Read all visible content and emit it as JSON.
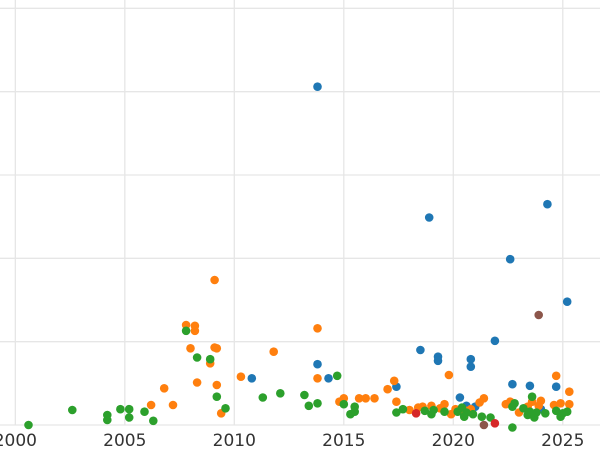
{
  "chart_data": {
    "type": "scatter",
    "title": "",
    "xlabel": "",
    "ylabel": "",
    "xlim": [
      1999.3,
      2026.7
    ],
    "ylim": [
      0,
      51
    ],
    "x_ticks": [
      2000,
      2005,
      2010,
      2015,
      2020,
      2025
    ],
    "x_tick_labels": [
      "2000",
      "2005",
      "2010",
      "2015",
      "2020",
      "2025"
    ],
    "y_gridlines": [
      0,
      10,
      20,
      30,
      40,
      50
    ],
    "grid": true,
    "legend": "none",
    "colors": {
      "blue": "#1f77b4",
      "orange": "#ff7f0e",
      "green": "#2ca02c",
      "red": "#d62728",
      "brown": "#8c564b"
    },
    "series": [
      {
        "color": "#1f77b4",
        "points": [
          [
            2010.8,
            5.6
          ],
          [
            2013.8,
            40.6
          ],
          [
            2013.8,
            7.3
          ],
          [
            2014.3,
            5.6
          ],
          [
            2017.4,
            4.6
          ],
          [
            2018.5,
            9.0
          ],
          [
            2018.9,
            24.9
          ],
          [
            2019.3,
            8.2
          ],
          [
            2019.3,
            7.7
          ],
          [
            2020.3,
            3.3
          ],
          [
            2020.6,
            2.3
          ],
          [
            2020.7,
            1.8
          ],
          [
            2020.8,
            7.9
          ],
          [
            2020.8,
            7.0
          ],
          [
            2021.0,
            2.2
          ],
          [
            2021.9,
            10.1
          ],
          [
            2022.6,
            19.9
          ],
          [
            2022.7,
            4.9
          ],
          [
            2024.0,
            1.9
          ],
          [
            2023.5,
            4.7
          ],
          [
            2024.3,
            26.5
          ],
          [
            2024.7,
            4.6
          ],
          [
            2025.2,
            14.8
          ],
          [
            2020.5,
            1.2
          ]
        ]
      },
      {
        "color": "#ff7f0e",
        "points": [
          [
            2006.2,
            2.4
          ],
          [
            2006.8,
            4.4
          ],
          [
            2007.2,
            2.4
          ],
          [
            2007.8,
            12.0
          ],
          [
            2008.0,
            9.2
          ],
          [
            2008.2,
            11.9
          ],
          [
            2008.2,
            11.3
          ],
          [
            2008.3,
            5.1
          ],
          [
            2008.9,
            7.4
          ],
          [
            2009.1,
            17.4
          ],
          [
            2009.1,
            9.3
          ],
          [
            2009.2,
            9.2
          ],
          [
            2009.2,
            4.8
          ],
          [
            2009.4,
            1.4
          ],
          [
            2010.3,
            5.8
          ],
          [
            2011.8,
            8.8
          ],
          [
            2013.8,
            5.6
          ],
          [
            2013.8,
            11.6
          ],
          [
            2014.8,
            2.8
          ],
          [
            2015.0,
            3.2
          ],
          [
            2015.7,
            3.2
          ],
          [
            2016.0,
            3.2
          ],
          [
            2016.4,
            3.2
          ],
          [
            2017.0,
            4.3
          ],
          [
            2017.3,
            5.3
          ],
          [
            2017.4,
            2.8
          ],
          [
            2018.0,
            1.8
          ],
          [
            2018.4,
            2.1
          ],
          [
            2018.6,
            2.2
          ],
          [
            2019.0,
            2.3
          ],
          [
            2019.4,
            2.0
          ],
          [
            2019.6,
            2.5
          ],
          [
            2019.8,
            6.0
          ],
          [
            2019.9,
            1.3
          ],
          [
            2020.1,
            1.9
          ],
          [
            2020.5,
            1.8
          ],
          [
            2020.8,
            1.9
          ],
          [
            2021.2,
            2.7
          ],
          [
            2021.4,
            3.2
          ],
          [
            2022.4,
            2.5
          ],
          [
            2022.6,
            2.8
          ],
          [
            2023.0,
            1.5
          ],
          [
            2023.4,
            2.2
          ],
          [
            2023.6,
            2.8
          ],
          [
            2023.9,
            2.3
          ],
          [
            2024.0,
            2.9
          ],
          [
            2024.6,
            2.4
          ],
          [
            2024.7,
            5.9
          ],
          [
            2024.9,
            2.6
          ],
          [
            2025.3,
            4.0
          ],
          [
            2025.3,
            2.5
          ]
        ]
      },
      {
        "color": "#2ca02c",
        "points": [
          [
            2000.6,
            0.0
          ],
          [
            2002.6,
            1.8
          ],
          [
            2004.2,
            1.2
          ],
          [
            2004.2,
            0.6
          ],
          [
            2004.8,
            1.9
          ],
          [
            2005.2,
            1.9
          ],
          [
            2005.2,
            0.9
          ],
          [
            2005.9,
            1.6
          ],
          [
            2006.3,
            0.5
          ],
          [
            2007.8,
            11.3
          ],
          [
            2008.3,
            8.1
          ],
          [
            2008.9,
            7.9
          ],
          [
            2009.2,
            3.4
          ],
          [
            2009.6,
            2.0
          ],
          [
            2011.3,
            3.3
          ],
          [
            2012.1,
            3.8
          ],
          [
            2013.2,
            3.6
          ],
          [
            2013.4,
            2.3
          ],
          [
            2013.8,
            2.6
          ],
          [
            2014.7,
            5.9
          ],
          [
            2015.0,
            2.5
          ],
          [
            2015.3,
            1.3
          ],
          [
            2015.5,
            1.6
          ],
          [
            2015.5,
            2.2
          ],
          [
            2017.4,
            1.5
          ],
          [
            2017.7,
            1.9
          ],
          [
            2018.7,
            1.7
          ],
          [
            2019.0,
            1.3
          ],
          [
            2019.1,
            1.8
          ],
          [
            2019.6,
            1.6
          ],
          [
            2020.2,
            1.6
          ],
          [
            2020.4,
            2.1
          ],
          [
            2020.6,
            1.5
          ],
          [
            2020.9,
            1.3
          ],
          [
            2021.3,
            1.0
          ],
          [
            2021.7,
            0.9
          ],
          [
            2022.7,
            2.2
          ],
          [
            2022.8,
            2.6
          ],
          [
            2023.2,
            2.0
          ],
          [
            2023.4,
            1.2
          ],
          [
            2023.5,
            1.6
          ],
          [
            2023.6,
            3.4
          ],
          [
            2023.7,
            0.9
          ],
          [
            2023.8,
            1.5
          ],
          [
            2024.2,
            1.4
          ],
          [
            2024.7,
            1.7
          ],
          [
            2024.9,
            1.0
          ],
          [
            2025.0,
            1.4
          ],
          [
            2025.2,
            1.6
          ],
          [
            2022.7,
            -0.3
          ],
          [
            2020.5,
            1.0
          ]
        ]
      },
      {
        "color": "#d62728",
        "points": [
          [
            2018.3,
            1.4
          ],
          [
            2021.9,
            0.2
          ]
        ]
      },
      {
        "color": "#8c564b",
        "points": [
          [
            2023.9,
            13.2
          ],
          [
            2021.4,
            0.0
          ]
        ]
      }
    ]
  }
}
